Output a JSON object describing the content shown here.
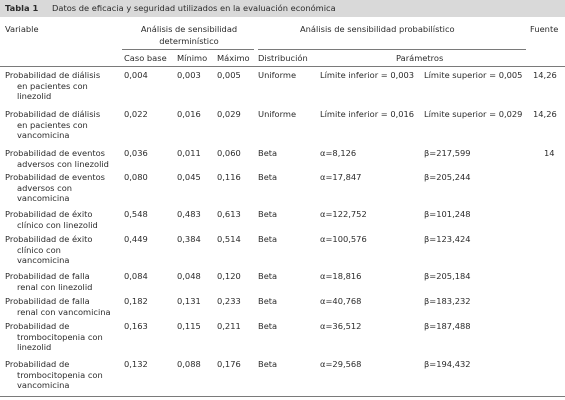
{
  "caption": {
    "label": "Tabla 1",
    "title": "Datos de eficacia y seguridad utilizados en la evaluación económica"
  },
  "header": {
    "variable": "Variable",
    "deterministic_line1": "Análisis de sensibilidad",
    "deterministic_line2": "determinístico",
    "probabilistic": "Análisis de sensibilidad probabilístico",
    "source": "Fuente",
    "base_case": "Caso base",
    "min": "Mínimo",
    "max": "Máximo",
    "distribution": "Distribución",
    "parameters": "Parámetros"
  },
  "rows": [
    {
      "variable": [
        "Probabilidad de diálisis",
        "en pacientes con",
        "linezolid"
      ],
      "base": "0,004",
      "min": "0,003",
      "max": "0,005",
      "dist": "Uniforme",
      "p1": "Límite inferior = 0,003",
      "p2": "Límite superior = 0,005",
      "source": "14,26"
    },
    {
      "variable": [
        "Probabilidad de diálisis",
        "en pacientes con",
        "vancomicina"
      ],
      "base": "0,022",
      "min": "0,016",
      "max": "0,029",
      "dist": "Uniforme",
      "p1": "Límite inferior = 0,016",
      "p2": "Límite superior = 0,029",
      "source": "14,26"
    },
    {
      "variable": [
        "Probabilidad de eventos",
        "adversos con linezolid"
      ],
      "base": "0,036",
      "min": "0,011",
      "max": "0,060",
      "dist": "Beta",
      "p1": "α=8,126",
      "p2": "β=217,599",
      "source": "14"
    },
    {
      "variable": [
        "Probabilidad de eventos",
        "adversos con",
        "vancomicina"
      ],
      "base": "0,080",
      "min": "0,045",
      "max": "0,116",
      "dist": "Beta",
      "p1": "α=17,847",
      "p2": "β=205,244",
      "source": ""
    },
    {
      "variable": [
        "Probabilidad de éxito",
        "clínico con linezolid"
      ],
      "base": "0,548",
      "min": "0,483",
      "max": "0,613",
      "dist": "Beta",
      "p1": "α=122,752",
      "p2": "β=101,248",
      "source": ""
    },
    {
      "variable": [
        "Probabilidad de éxito",
        "clínico con",
        "vancomicina"
      ],
      "base": "0,449",
      "min": "0,384",
      "max": "0,514",
      "dist": "Beta",
      "p1": "α=100,576",
      "p2": "β=123,424",
      "source": ""
    },
    {
      "variable": [
        "Probabilidad de falla",
        "renal con linezolid"
      ],
      "base": "0,084",
      "min": "0,048",
      "max": "0,120",
      "dist": "Beta",
      "p1": "α=18,816",
      "p2": "β=205,184",
      "source": ""
    },
    {
      "variable": [
        "Probabilidad de falla",
        "renal con vancomicina"
      ],
      "base": "0,182",
      "min": "0,131",
      "max": "0,233",
      "dist": "Beta",
      "p1": "α=40,768",
      "p2": "β=183,232",
      "source": ""
    },
    {
      "variable": [
        "Probabilidad de",
        "trombocitopenia con",
        "linezolid"
      ],
      "base": "0,163",
      "min": "0,115",
      "max": "0,211",
      "dist": "Beta",
      "p1": "α=36,512",
      "p2": "β=187,488",
      "source": ""
    },
    {
      "variable": [
        "Probabilidad de",
        "trombocitopenia con",
        "vancomicina"
      ],
      "base": "0,132",
      "min": "0,088",
      "max": "0,176",
      "dist": "Beta",
      "p1": "α=29,568",
      "p2": "β=194,432",
      "source": ""
    }
  ]
}
